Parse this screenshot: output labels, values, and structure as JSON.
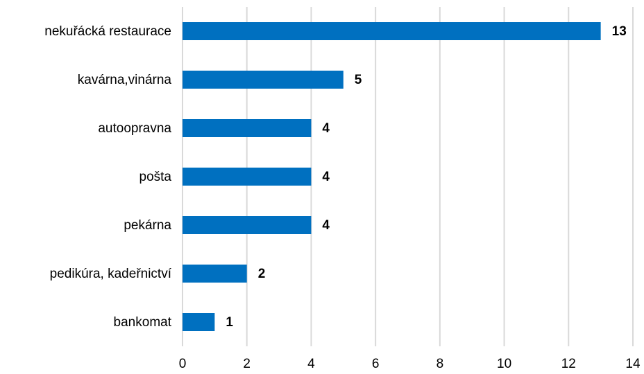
{
  "chart_data": {
    "type": "bar",
    "orientation": "horizontal",
    "categories": [
      "nekuřácká restaurace",
      "kavárna,vinárna",
      "autoopravna",
      "pošta",
      "pekárna",
      "pedikúra, kadeřnictví",
      "bankomat"
    ],
    "values": [
      13,
      5,
      4,
      4,
      4,
      2,
      1
    ],
    "color": "#0070c0",
    "xlim": [
      0,
      14
    ],
    "xticks": [
      0,
      2,
      4,
      6,
      8,
      10,
      12,
      14
    ],
    "grid": true
  }
}
